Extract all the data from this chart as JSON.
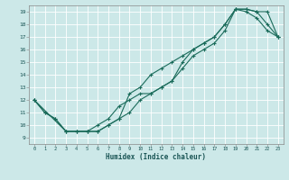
{
  "title": "",
  "xlabel": "Humidex (Indice chaleur)",
  "ylabel": "",
  "bg_color": "#cce8e8",
  "grid_color": "#ffffff",
  "line_color": "#1a6b5a",
  "marker": "+",
  "xlim": [
    -0.5,
    23.5
  ],
  "ylim": [
    8.5,
    19.5
  ],
  "xticks": [
    0,
    1,
    2,
    3,
    4,
    5,
    6,
    7,
    8,
    9,
    10,
    11,
    12,
    13,
    14,
    15,
    16,
    17,
    18,
    19,
    20,
    21,
    22,
    23
  ],
  "yticks": [
    9,
    10,
    11,
    12,
    13,
    14,
    15,
    16,
    17,
    18,
    19
  ],
  "line1_x": [
    0,
    1,
    2,
    3,
    4,
    5,
    6,
    7,
    8,
    9,
    10,
    11,
    12,
    13,
    14,
    15,
    16,
    17,
    18,
    19,
    20,
    21,
    22,
    23
  ],
  "line1_y": [
    12,
    11,
    10.5,
    9.5,
    9.5,
    9.5,
    9.5,
    10,
    10.5,
    12.5,
    13,
    14,
    14.5,
    15,
    15.5,
    16,
    16.5,
    17,
    18,
    19.2,
    19,
    18.5,
    17.5,
    17
  ],
  "line2_x": [
    0,
    1,
    2,
    3,
    4,
    5,
    6,
    7,
    8,
    9,
    10,
    11,
    12,
    13,
    14,
    15,
    16,
    17,
    18,
    19,
    20,
    21,
    22,
    23
  ],
  "line2_y": [
    12,
    11,
    10.5,
    9.5,
    9.5,
    9.5,
    10,
    10.5,
    11.5,
    12,
    12.5,
    12.5,
    13,
    13.5,
    14.5,
    15.5,
    16,
    16.5,
    17.5,
    19.2,
    19.2,
    19,
    18,
    17
  ],
  "line3_x": [
    0,
    3,
    4,
    5,
    6,
    7,
    8,
    9,
    10,
    11,
    12,
    13,
    14,
    15,
    16,
    17,
    18,
    19,
    20,
    21,
    22,
    23
  ],
  "line3_y": [
    12,
    9.5,
    9.5,
    9.5,
    9.5,
    10,
    10.5,
    11,
    12,
    12.5,
    13,
    13.5,
    15,
    16,
    16.5,
    17,
    18,
    19.2,
    19.2,
    19,
    19,
    17
  ]
}
